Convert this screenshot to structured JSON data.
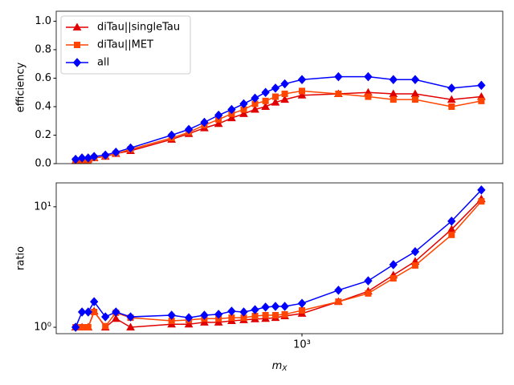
{
  "chart_data": [
    {
      "type": "line",
      "y_label": "efficiency",
      "xscale": "log",
      "xlim": [
        222,
        3420
      ],
      "ylim": [
        0,
        1.07
      ],
      "yticks": [
        {
          "value": 0,
          "label": "0.0"
        },
        {
          "value": 0.2,
          "label": "0.2"
        },
        {
          "value": 0.4,
          "label": "0.4"
        },
        {
          "value": 0.6,
          "label": "0.6"
        },
        {
          "value": 0.8,
          "label": "0.8"
        },
        {
          "value": 1,
          "label": "1.0"
        }
      ],
      "legend": "upper left",
      "x": [
        250,
        260,
        270,
        280,
        300,
        320,
        350,
        450,
        500,
        550,
        600,
        650,
        700,
        750,
        800,
        850,
        900,
        1000,
        1250,
        1500,
        1750,
        2000,
        2500,
        3000
      ],
      "series": [
        {
          "name": "diTau||singleTau",
          "color": "#e00000",
          "marker": "triangle",
          "values": [
            0.02,
            0.03,
            0.03,
            0.04,
            0.05,
            0.07,
            0.09,
            0.17,
            0.21,
            0.25,
            0.28,
            0.32,
            0.35,
            0.38,
            0.4,
            0.43,
            0.45,
            0.48,
            0.49,
            0.5,
            0.49,
            0.49,
            0.45,
            0.47
          ]
        },
        {
          "name": "diTau||MET",
          "color": "#ff4500",
          "marker": "square",
          "values": [
            0.02,
            0.02,
            0.02,
            0.04,
            0.05,
            0.07,
            0.1,
            0.18,
            0.22,
            0.27,
            0.31,
            0.35,
            0.38,
            0.42,
            0.44,
            0.47,
            0.49,
            0.51,
            0.49,
            0.47,
            0.45,
            0.45,
            0.4,
            0.44
          ]
        },
        {
          "name": "all",
          "color": "#0000ff",
          "marker": "diamond",
          "values": [
            0.03,
            0.04,
            0.04,
            0.05,
            0.06,
            0.08,
            0.11,
            0.2,
            0.24,
            0.29,
            0.34,
            0.38,
            0.42,
            0.46,
            0.5,
            0.53,
            0.56,
            0.59,
            0.61,
            0.61,
            0.59,
            0.59,
            0.53,
            0.55
          ]
        }
      ]
    },
    {
      "type": "line",
      "y_label": "ratio",
      "x_label": "mX",
      "xscale": "log",
      "yscale": "log",
      "xlim": [
        222,
        3420
      ],
      "ylim": [
        0.885,
        15.8
      ],
      "xticks": [
        {
          "value": 1000,
          "label": "10³"
        }
      ],
      "yticks": [
        {
          "value": 1,
          "label": "10⁰"
        },
        {
          "value": 10,
          "label": "10¹"
        }
      ],
      "x": [
        250,
        260,
        270,
        280,
        300,
        320,
        350,
        450,
        500,
        550,
        600,
        650,
        700,
        750,
        800,
        850,
        900,
        1000,
        1250,
        1500,
        1750,
        2000,
        2500,
        3000
      ],
      "series": [
        {
          "name": "diTau||singleTau",
          "color": "#e00000",
          "marker": "triangle",
          "values": [
            1.0,
            1.0,
            1.0,
            1.36,
            1.0,
            1.18,
            1.0,
            1.06,
            1.06,
            1.1,
            1.1,
            1.13,
            1.15,
            1.17,
            1.18,
            1.2,
            1.24,
            1.3,
            1.63,
            1.99,
            2.71,
            3.52,
            6.5,
            11.6
          ]
        },
        {
          "name": "diTau||MET",
          "color": "#ff4500",
          "marker": "square",
          "values": [
            1.0,
            1.0,
            1.0,
            1.34,
            1.02,
            1.32,
            1.2,
            1.13,
            1.15,
            1.18,
            1.18,
            1.2,
            1.2,
            1.24,
            1.26,
            1.26,
            1.28,
            1.38,
            1.63,
            1.91,
            2.55,
            3.26,
            5.85,
            11.1
          ]
        },
        {
          "name": "all",
          "color": "#0000ff",
          "marker": "diamond",
          "values": [
            1.0,
            1.34,
            1.34,
            1.63,
            1.22,
            1.34,
            1.22,
            1.26,
            1.2,
            1.26,
            1.28,
            1.36,
            1.34,
            1.4,
            1.47,
            1.49,
            1.49,
            1.58,
            2.03,
            2.43,
            3.31,
            4.24,
            7.6,
            13.8
          ]
        }
      ]
    }
  ]
}
